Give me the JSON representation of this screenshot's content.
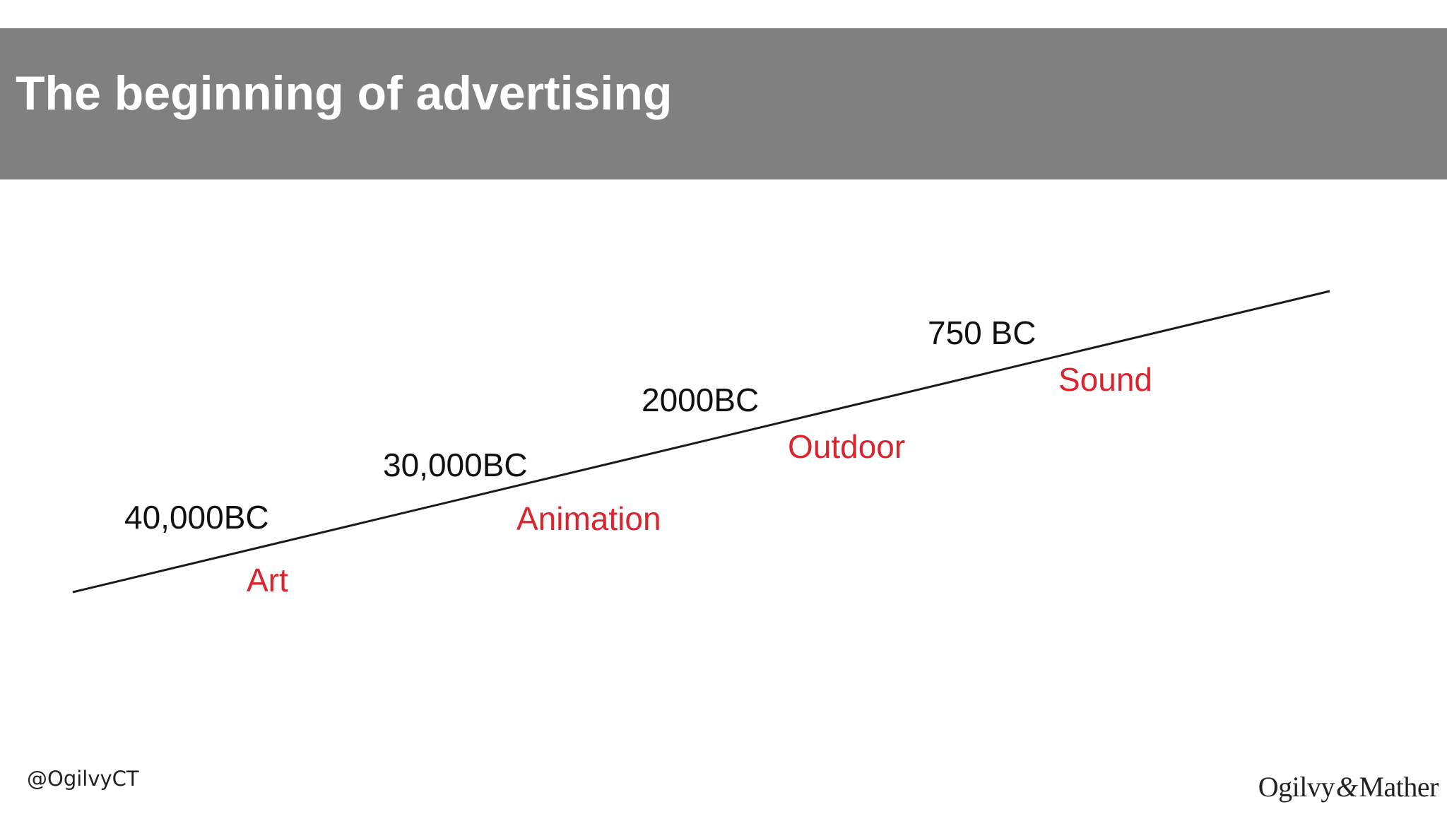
{
  "slide": {
    "title": "The beginning of advertising",
    "handle": "@OgilvyCT",
    "logo": {
      "part1": "Ogilvy",
      "amp": "&",
      "part2": "Mather"
    }
  },
  "timeline": {
    "line_color": "#1a1a1a",
    "medium_color": "#d9252f",
    "events": [
      {
        "year": "40,000BC",
        "medium": "Art"
      },
      {
        "year": "30,000BC",
        "medium": "Animation"
      },
      {
        "year": "2000BC",
        "medium": "Outdoor"
      },
      {
        "year": "750 BC",
        "medium": "Sound"
      }
    ]
  }
}
